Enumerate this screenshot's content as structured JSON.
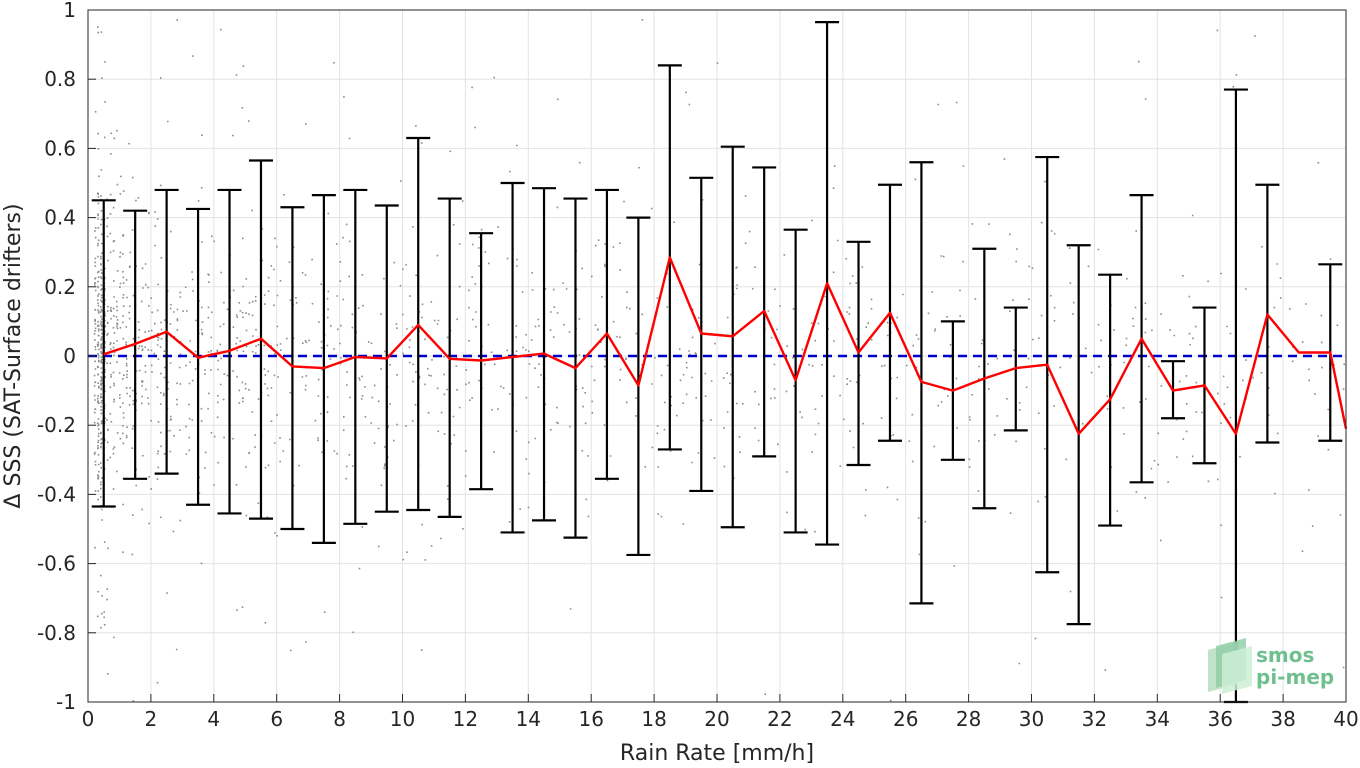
{
  "chart_data": {
    "type": "scatter",
    "xlabel": "Rain Rate [mm/h]",
    "ylabel": "Δ SSS (SAT-Surface drifters)",
    "xlim": [
      0,
      40
    ],
    "ylim": [
      -1,
      1
    ],
    "xticks": [
      0,
      2,
      4,
      6,
      8,
      10,
      12,
      14,
      16,
      18,
      20,
      22,
      24,
      26,
      28,
      30,
      32,
      34,
      36,
      38,
      40
    ],
    "yticks": [
      -1,
      -0.8,
      -0.6,
      -0.4,
      -0.2,
      0,
      0.2,
      0.4,
      0.6,
      0.8,
      1
    ],
    "ytick_labels": [
      "-1",
      "-0.8",
      "-0.6",
      "-0.4",
      "-0.2",
      "0",
      "0.2",
      "0.4",
      "0.6",
      "0.8",
      "1"
    ],
    "grid": true,
    "colors": {
      "scatter": "#8c8c8c",
      "mean": "#ff0000",
      "zero_line": "#0000cc",
      "errorbar": "#000000"
    },
    "series": [
      {
        "name": "",
        "type": "line-with-errorbars",
        "x": [
          0.5,
          1.5,
          2.5,
          3.5,
          4.5,
          5.5,
          6.5,
          7.5,
          8.5,
          9.5,
          10.5,
          11.5,
          12.5,
          13.5,
          14.5,
          15.5,
          16.5,
          17.5,
          18.5,
          19.5,
          20.5,
          21.5,
          22.5,
          23.5,
          24.5,
          25.5,
          26.5,
          27.5,
          28.5,
          29.5,
          30.5,
          31.5,
          32.5,
          33.5,
          34.5,
          35.5,
          36.5,
          37.5,
          38.5,
          39.5,
          40.0
        ],
        "y": [
          0.005,
          0.035,
          0.07,
          -0.005,
          0.015,
          0.05,
          -0.03,
          -0.035,
          -0.003,
          -0.007,
          0.09,
          -0.008,
          -0.013,
          -0.003,
          0.007,
          -0.035,
          0.065,
          -0.085,
          0.285,
          0.065,
          0.057,
          0.13,
          -0.07,
          0.21,
          0.01,
          0.125,
          -0.075,
          -0.1,
          -0.065,
          -0.035,
          -0.025,
          -0.225,
          -0.125,
          0.05,
          -0.1,
          -0.085,
          -0.225,
          0.12,
          0.01,
          0.01,
          -0.21
        ],
        "upper": [
          0.45,
          0.42,
          0.48,
          0.425,
          0.48,
          0.565,
          0.43,
          0.465,
          0.48,
          0.435,
          0.63,
          0.455,
          0.355,
          0.5,
          0.485,
          0.455,
          0.48,
          0.4,
          0.84,
          0.515,
          0.605,
          0.545,
          0.365,
          0.965,
          0.33,
          0.495,
          0.56,
          0.1,
          0.31,
          0.14,
          0.575,
          0.32,
          0.235,
          0.465,
          -0.015,
          0.14,
          0.77,
          0.495,
          null,
          0.265,
          null
        ],
        "lower": [
          -0.435,
          -0.355,
          -0.34,
          -0.43,
          -0.455,
          -0.47,
          -0.5,
          -0.54,
          -0.485,
          -0.45,
          -0.445,
          -0.465,
          -0.385,
          -0.51,
          -0.475,
          -0.525,
          -0.355,
          -0.575,
          -0.27,
          -0.39,
          -0.495,
          -0.29,
          -0.51,
          -0.545,
          -0.315,
          -0.245,
          -0.715,
          -0.3,
          -0.44,
          -0.215,
          -0.625,
          -0.775,
          -0.49,
          -0.365,
          -0.18,
          -0.31,
          -1.0,
          -0.25,
          null,
          -0.245,
          null
        ]
      },
      {
        "name": "",
        "type": "reference-line",
        "y": 0
      }
    ],
    "scatter_note": "dense grey point cloud; highest density at 0-4 mm/h, thinning with rain rate"
  },
  "logo": {
    "line1": "smos",
    "line2": "pi-mep"
  }
}
